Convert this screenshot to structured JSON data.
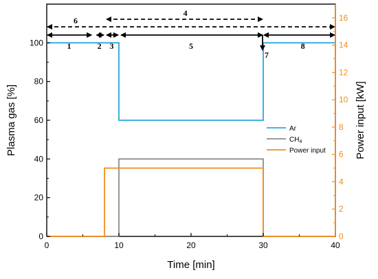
{
  "chart_data": {
    "type": "line",
    "xlabel": "Time [min]",
    "ylabel": "Plasma gas [%]",
    "y2label": "Power input [kW]",
    "xlim": [
      0,
      40
    ],
    "ylim": [
      0,
      120
    ],
    "y2lim": [
      0,
      17
    ],
    "xticks": [
      0,
      10,
      20,
      30,
      40
    ],
    "yticks": [
      0,
      20,
      40,
      60,
      80,
      100
    ],
    "y2ticks": [
      0,
      2,
      4,
      6,
      8,
      10,
      12,
      14,
      16
    ],
    "grid": false,
    "legend_position": "center-right",
    "series": [
      {
        "name": "Ar",
        "axis": "left",
        "color": "#29a8e0",
        "x": [
          0,
          10,
          10,
          30,
          30,
          40
        ],
        "y": [
          100,
          100,
          60,
          60,
          100,
          100
        ]
      },
      {
        "name": "CH",
        "name_sub": "4",
        "axis": "left",
        "color": "#8c8c8c",
        "x": [
          0,
          10,
          10,
          30,
          30,
          40
        ],
        "y": [
          0,
          0,
          40,
          40,
          0,
          0
        ]
      },
      {
        "name": "Power input",
        "axis": "right",
        "color": "#f28c1e",
        "x": [
          0,
          8,
          8,
          30,
          30,
          40
        ],
        "y": [
          0,
          0,
          5,
          5,
          0,
          0
        ]
      }
    ],
    "annotations": {
      "phases": [
        {
          "label": "1",
          "x1": 0,
          "x2": 6.3,
          "label_x": 3.1
        },
        {
          "label": "2",
          "x1": 6.8,
          "x2": 8.0,
          "label_x": 7.3
        },
        {
          "label": "3",
          "x1": 8.2,
          "x2": 10,
          "label_x": 9.0
        },
        {
          "label": "5",
          "x1": 10.2,
          "x2": 30,
          "label_x": 20
        },
        {
          "label": "8",
          "x1": 30,
          "x2": 40,
          "label_x": 35.5
        }
      ],
      "phase_7": {
        "label": "7",
        "x": 30
      },
      "dashed": [
        {
          "label": "6",
          "x1": 0,
          "x2": 40,
          "label_x": 4.0
        },
        {
          "label": "4",
          "x1": 8.2,
          "x2": 30,
          "label_x": 19.2
        }
      ]
    }
  }
}
